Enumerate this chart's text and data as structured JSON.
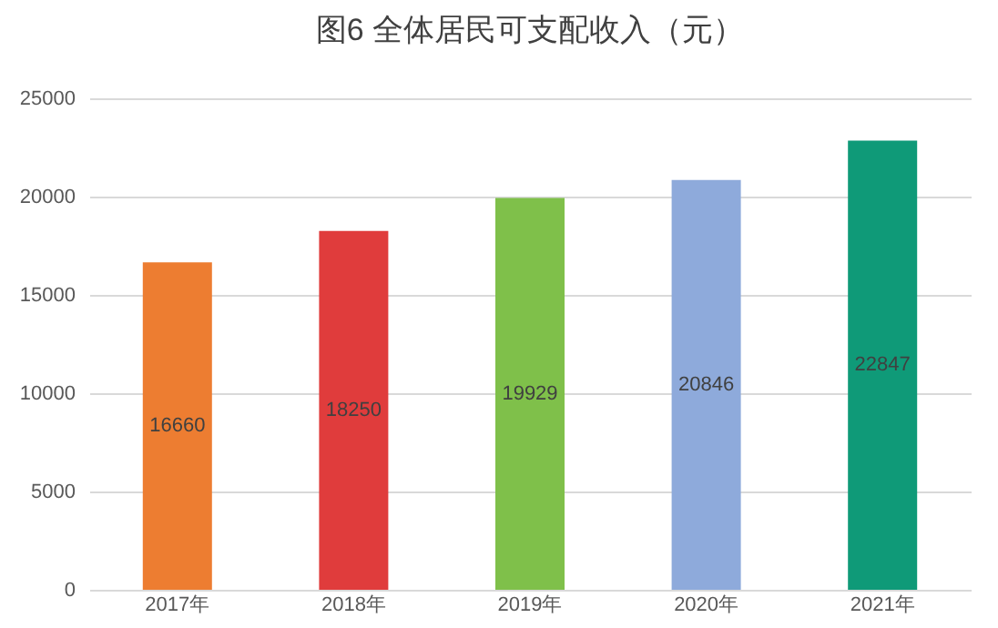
{
  "chart_data": {
    "type": "bar",
    "title": "图6 全体居民可支配收入（元）",
    "categories": [
      "2017年",
      "2018年",
      "2019年",
      "2020年",
      "2021年"
    ],
    "values": [
      16660,
      18250,
      19929,
      20846,
      22847
    ],
    "colors": [
      "#ed7d31",
      "#e03c3c",
      "#7fc04a",
      "#8eaadb",
      "#0f9a78"
    ],
    "ylim": [
      0,
      25000
    ],
    "yticks": [
      0,
      5000,
      10000,
      15000,
      20000,
      25000
    ],
    "grid": "y",
    "data_labels": true
  }
}
